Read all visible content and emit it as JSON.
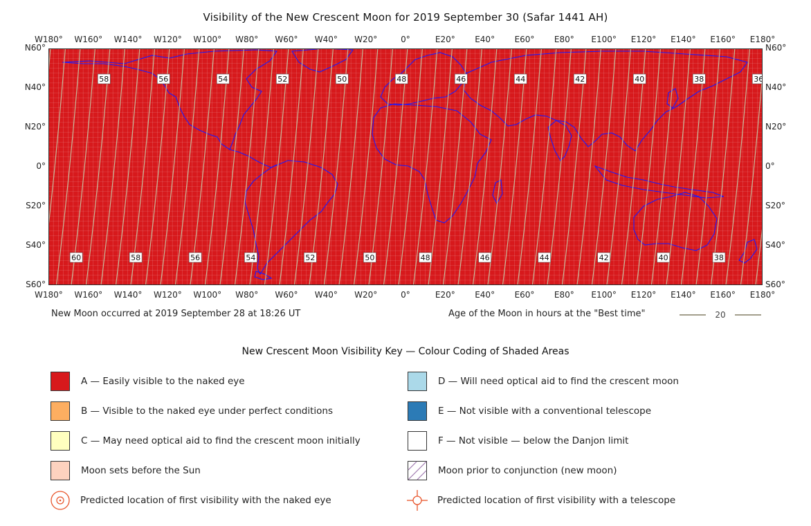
{
  "title": "Visibility of the New Crescent Moon for 2019 September 30 (Safar 1441 AH)",
  "map": {
    "lon_labels": [
      "W180°",
      "W160°",
      "W140°",
      "W120°",
      "W100°",
      "W80°",
      "W60°",
      "W40°",
      "W20°",
      "0°",
      "E20°",
      "E40°",
      "E60°",
      "E80°",
      "E100°",
      "E120°",
      "E140°",
      "E160°",
      "E180°"
    ],
    "lat_labels": [
      "N60°",
      "N40°",
      "N20°",
      "0°",
      "S20°",
      "S40°",
      "S60°"
    ],
    "fill_colour": "#d7191c",
    "contour_colour": "#c8b99a",
    "coast_colour": "#1a1aff",
    "age_labels_top": [
      {
        "value": "58",
        "lon": -152
      },
      {
        "value": "56",
        "lon": -122
      },
      {
        "value": "54",
        "lon": -92
      },
      {
        "value": "52",
        "lon": -62
      },
      {
        "value": "50",
        "lon": -32
      },
      {
        "value": "48",
        "lon": -2
      },
      {
        "value": "46",
        "lon": 28
      },
      {
        "value": "44",
        "lon": 58
      },
      {
        "value": "42",
        "lon": 88
      },
      {
        "value": "40",
        "lon": 118
      },
      {
        "value": "38",
        "lon": 148
      },
      {
        "value": "36",
        "lon": 178
      }
    ],
    "age_labels_bottom": [
      {
        "value": "60",
        "lon": -166
      },
      {
        "value": "58",
        "lon": -136
      },
      {
        "value": "56",
        "lon": -106
      },
      {
        "value": "54",
        "lon": -78
      },
      {
        "value": "52",
        "lon": -48
      },
      {
        "value": "50",
        "lon": -18
      },
      {
        "value": "48",
        "lon": 10
      },
      {
        "value": "46",
        "lon": 40
      },
      {
        "value": "44",
        "lon": 70
      },
      {
        "value": "42",
        "lon": 100
      },
      {
        "value": "40",
        "lon": 130
      },
      {
        "value": "38",
        "lon": 158
      }
    ]
  },
  "new_moon_note": "New Moon occurred at 2019 September 28 at 18:26 UT",
  "age_note": {
    "label": "Age of the Moon in hours at the \"Best time\"",
    "sample": "20"
  },
  "key": {
    "title": "New Crescent Moon Visibility Key — Colour Coding of Shaded Areas",
    "items": [
      {
        "label": "A — Easily visible to the naked eye",
        "color": "#d7191c"
      },
      {
        "label": "B — Visible to the naked eye under perfect conditions",
        "color": "#fdae61"
      },
      {
        "label": "C — May need optical aid to find the crescent moon initially",
        "color": "#ffffbf"
      },
      {
        "label": "Moon sets before the Sun",
        "color": "#fdd2bf"
      },
      {
        "label": "Predicted location of first visibility with the naked eye",
        "icon": "naked-eye-target-icon"
      },
      {
        "label": "D — Will need optical aid to find the crescent moon",
        "color": "#abd9e9"
      },
      {
        "label": "E — Not visible with a conventional telescope",
        "color": "#2c7bb6"
      },
      {
        "label": "F — Not visible — below the Danjon limit",
        "color": "#ffffff"
      },
      {
        "label": "Moon prior to conjunction (new moon)",
        "icon": "hatched-swatch-icon"
      },
      {
        "label": "Predicted location of first visibility with a telescope",
        "icon": "telescope-crosshair-icon"
      }
    ]
  }
}
